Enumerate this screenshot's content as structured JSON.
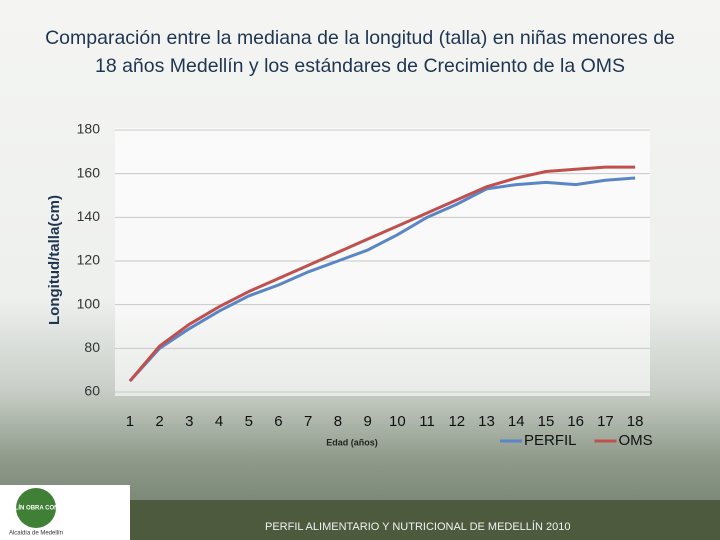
{
  "chart_data": {
    "type": "line",
    "title": "Comparación entre la mediana de la longitud (talla) en niñas menores de 18 años Medellín y los estándares de Crecimiento de la OMS",
    "x_label": "Edad (años)",
    "y_label": "Longitud/talla(cm)",
    "categories": [
      "1",
      "2",
      "3",
      "4",
      "5",
      "6",
      "7",
      "8",
      "9",
      "10",
      "11",
      "12",
      "13",
      "14",
      "15",
      "16",
      "17",
      "18"
    ],
    "series": [
      {
        "name": "PERFIL",
        "color": "#5b86c6",
        "values": [
          65,
          80,
          89,
          97,
          104,
          109,
          115,
          120,
          125,
          132,
          140,
          146,
          153,
          155,
          156,
          155,
          157,
          158
        ]
      },
      {
        "name": "OMS",
        "color": "#c0504d",
        "values": [
          65,
          81,
          91,
          99,
          106,
          112,
          118,
          124,
          130,
          136,
          142,
          148,
          154,
          158,
          161,
          162,
          163,
          163
        ]
      }
    ],
    "ylim": [
      60,
      180
    ],
    "yticks": [
      60,
      80,
      100,
      120,
      140,
      160,
      180
    ],
    "grid": true,
    "legend": "bottom-right"
  },
  "footer": {
    "banner": "PERFIL ALIMENTARIO Y NUTRICIONAL DE MEDELLÍN 2010",
    "logo": "MEDELLÍN OBRA CON AMOR",
    "logo_caption": "Alcaldía de Medellín"
  }
}
